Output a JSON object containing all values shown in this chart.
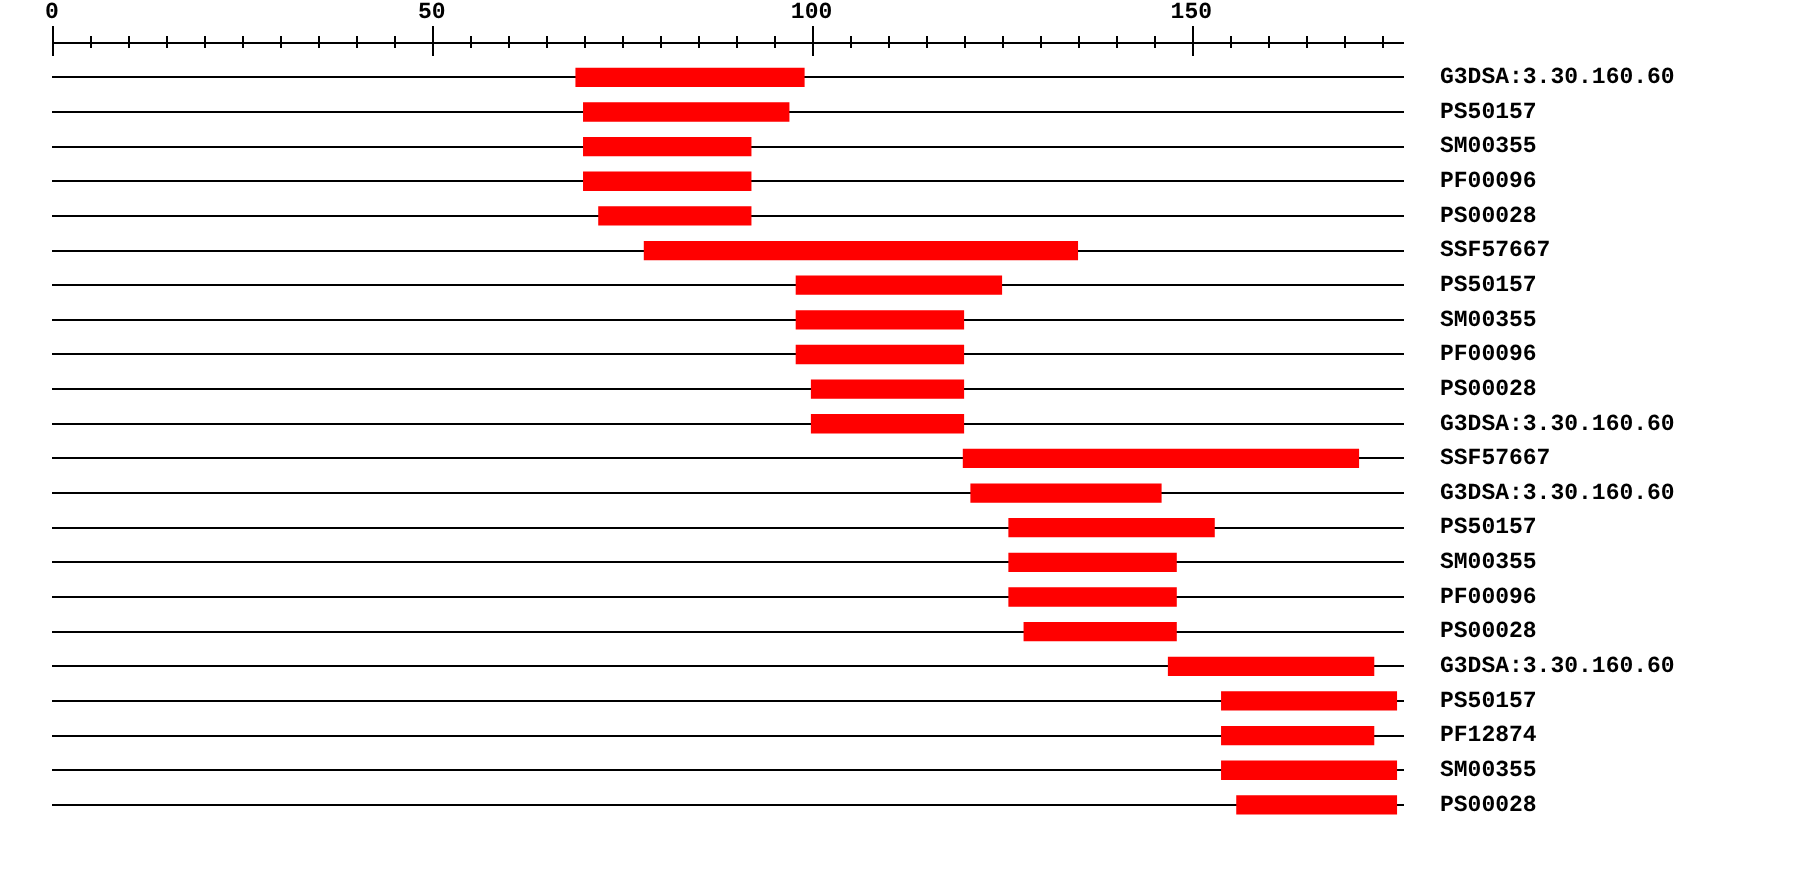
{
  "chart_data": {
    "type": "bar",
    "orientation": "horizontal",
    "categories": [
      "G3DSA:3.30.160.60",
      "PS50157",
      "SM00355",
      "PF00096",
      "PS00028",
      "SSF57667",
      "PS50157",
      "SM00355",
      "PF00096",
      "PS00028",
      "G3DSA:3.30.160.60",
      "SSF57667",
      "G3DSA:3.30.160.60",
      "PS50157",
      "SM00355",
      "PF00096",
      "PS00028",
      "G3DSA:3.30.160.60",
      "PS50157",
      "PF12874",
      "SM00355",
      "PS00028"
    ],
    "base": [
      69,
      70,
      70,
      70,
      72,
      78,
      98,
      98,
      98,
      100,
      100,
      120,
      121,
      126,
      126,
      126,
      128,
      147,
      154,
      154,
      154,
      156
    ],
    "values": [
      30,
      27,
      22,
      22,
      20,
      57,
      27,
      22,
      22,
      20,
      20,
      52,
      25,
      27,
      22,
      22,
      20,
      27,
      23,
      20,
      23,
      21
    ],
    "color": "#ff0000",
    "xlim": [
      0,
      178
    ],
    "xticks": [
      0,
      {
        "value": 5,
        "label": null
      },
      {
        "value": 10,
        "label": null
      },
      {
        "value": 15,
        "label": null
      },
      {
        "value": 20,
        "label": null
      },
      {
        "value": 25,
        "label": null
      },
      {
        "value": 30,
        "label": null
      },
      {
        "value": 35,
        "label": null
      },
      {
        "value": 40,
        "label": null
      },
      {
        "value": 45,
        "label": null
      },
      50,
      {
        "value": 55,
        "label": null
      },
      {
        "value": 60,
        "label": null
      },
      {
        "value": 65,
        "label": null
      },
      {
        "value": 70,
        "label": null
      },
      {
        "value": 75,
        "label": null
      },
      {
        "value": 80,
        "label": null
      },
      {
        "value": 85,
        "label": null
      },
      {
        "value": 90,
        "label": null
      },
      {
        "value": 95,
        "label": null
      },
      100,
      {
        "value": 105,
        "label": null
      },
      {
        "value": 110,
        "label": null
      },
      {
        "value": 115,
        "label": null
      },
      {
        "value": 120,
        "label": null
      },
      {
        "value": 125,
        "label": null
      },
      {
        "value": 130,
        "label": null
      },
      {
        "value": 135,
        "label": null
      },
      {
        "value": 140,
        "label": null
      },
      {
        "value": 145,
        "label": null
      },
      150,
      {
        "value": 155,
        "label": null
      },
      {
        "value": 160,
        "label": null
      },
      {
        "value": 165,
        "label": null
      },
      {
        "value": 170,
        "label": null
      },
      {
        "value": 175,
        "label": null
      }
    ],
    "grid": "y"
  }
}
